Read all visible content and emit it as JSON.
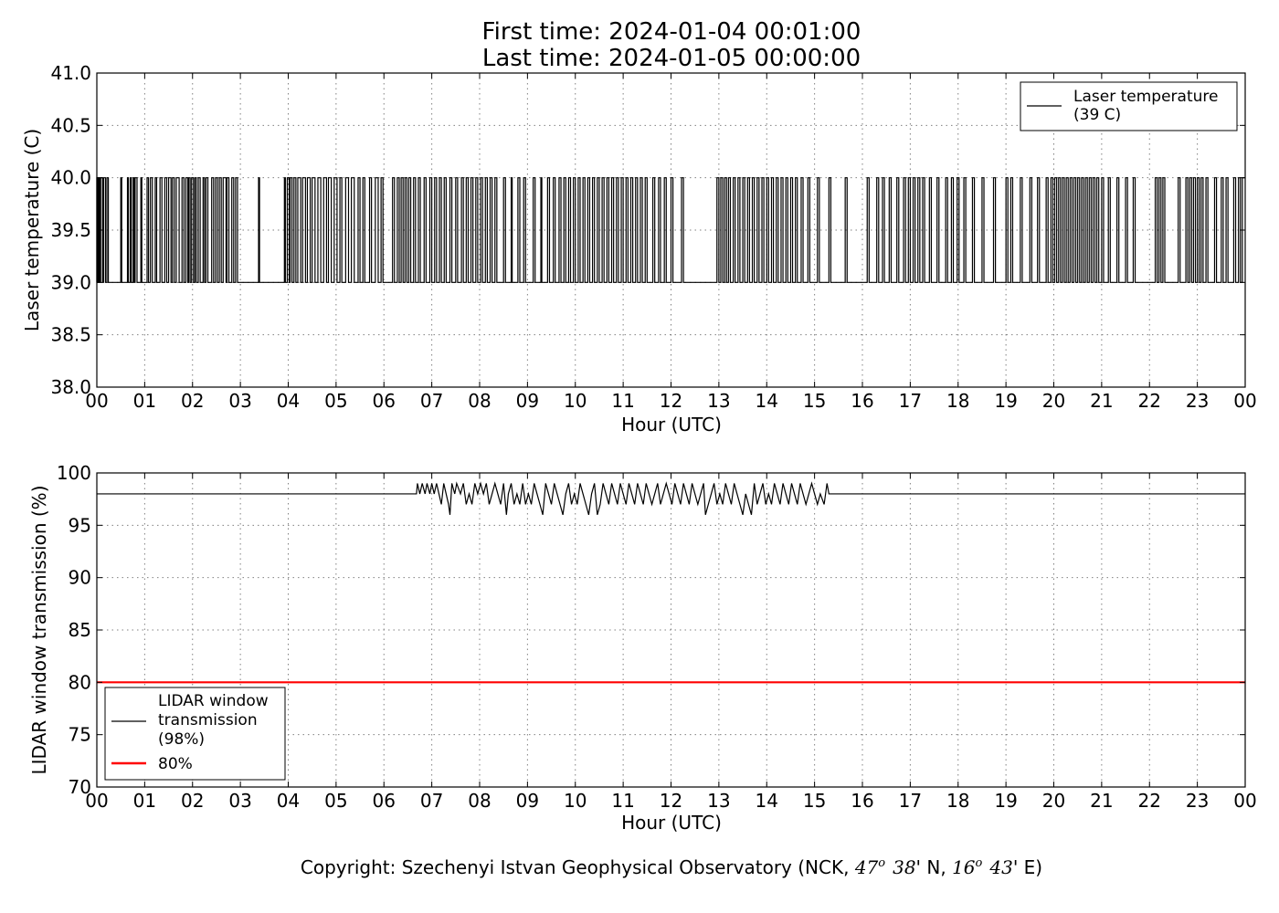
{
  "header": {
    "first_time": "First time: 2024-01-04 00:01:00",
    "last_time": "Last time: 2024-01-05 00:00:00"
  },
  "footer": {
    "copyright_prefix": "Copyright: Szechenyi Istvan Geophysical Observatory (NCK, ",
    "lat_deg": "47",
    "deg_mark": "o",
    "lat_min": "38",
    "lat_suffix": "' N, ",
    "lon_deg": "16",
    "lon_min": "43",
    "lon_suffix": "' E)"
  },
  "colors": {
    "series": "#000000",
    "threshold": "#ff0000",
    "grid": "#808080"
  },
  "chart_data": [
    {
      "type": "line",
      "ylabel": "Laser temperature (C)",
      "xlabel": "Hour (UTC)",
      "xlim": [
        0,
        24
      ],
      "ylim": [
        38.0,
        41.0
      ],
      "x_tick_labels": [
        "00",
        "01",
        "02",
        "03",
        "04",
        "05",
        "06",
        "07",
        "08",
        "09",
        "10",
        "11",
        "12",
        "13",
        "14",
        "15",
        "16",
        "17",
        "18",
        "19",
        "20",
        "21",
        "22",
        "23",
        "00"
      ],
      "y_ticks": [
        38.0,
        38.5,
        39.0,
        39.5,
        40.0,
        40.5,
        41.0
      ],
      "y_tick_labels": [
        "38.0",
        "38.5",
        "39.0",
        "39.5",
        "40.0",
        "40.5",
        "41.0"
      ],
      "grid": true,
      "legend_position": "top-right",
      "series": [
        {
          "name": "Laser temperature\n(39 C)",
          "legend_lines": [
            "Laser temperature",
            "(39 C)"
          ],
          "color": "#000000",
          "low_value": 39.0,
          "high_value": 40.0,
          "x_hours": [
            0.0,
            0.02,
            0.04,
            0.06,
            0.08,
            0.12,
            0.14,
            0.18,
            0.21,
            0.24,
            0.5,
            0.52,
            0.64,
            0.66,
            0.7,
            0.72,
            0.76,
            0.78,
            0.8,
            0.84,
            0.92,
            0.94,
            1.05,
            1.08,
            1.12,
            1.16,
            1.22,
            1.25,
            1.32,
            1.36,
            1.42,
            1.46,
            1.5,
            1.55,
            1.58,
            1.62,
            1.66,
            1.72,
            1.78,
            1.82,
            1.86,
            1.9,
            1.92,
            1.95,
            1.98,
            2.02,
            2.05,
            2.08,
            2.12,
            2.16,
            2.22,
            2.25,
            2.28,
            2.32,
            2.4,
            2.44,
            2.48,
            2.52,
            2.56,
            2.6,
            2.64,
            2.7,
            2.72,
            2.76,
            2.82,
            2.86,
            2.9,
            2.94,
            3.38,
            3.4,
            3.92,
            3.94,
            3.98,
            4.02,
            4.04,
            4.08,
            4.12,
            4.16,
            4.2,
            4.26,
            4.3,
            4.36,
            4.4,
            4.46,
            4.5,
            4.56,
            4.62,
            4.68,
            4.74,
            4.8,
            4.84,
            4.9,
            4.96,
            5.02,
            5.08,
            5.12,
            5.2,
            5.26,
            5.32,
            5.38,
            5.46,
            5.5,
            5.56,
            5.6,
            5.7,
            5.74,
            5.82,
            5.88,
            5.94,
            5.98,
            6.18,
            6.22,
            6.28,
            6.32,
            6.36,
            6.4,
            6.44,
            6.48,
            6.52,
            6.56,
            6.62,
            6.66,
            6.72,
            6.76,
            6.84,
            6.88,
            6.96,
            7.0,
            7.06,
            7.1,
            7.16,
            7.2,
            7.26,
            7.3,
            7.38,
            7.42,
            7.5,
            7.54,
            7.62,
            7.66,
            7.72,
            7.76,
            7.82,
            7.86,
            7.92,
            7.96,
            8.02,
            8.06,
            8.12,
            8.16,
            8.22,
            8.26,
            8.32,
            8.36,
            8.5,
            8.54,
            8.66,
            8.68,
            8.8,
            8.84,
            8.92,
            8.96,
            9.12,
            9.16,
            9.28,
            9.3,
            9.42,
            9.46,
            9.54,
            9.58,
            9.66,
            9.7,
            9.76,
            9.8,
            9.86,
            9.9,
            9.96,
            10.0,
            10.06,
            10.1,
            10.16,
            10.2,
            10.26,
            10.3,
            10.36,
            10.4,
            10.46,
            10.5,
            10.56,
            10.6,
            10.66,
            10.7,
            10.76,
            10.8,
            10.86,
            10.9,
            10.96,
            11.0,
            11.06,
            11.1,
            11.16,
            11.2,
            11.26,
            11.3,
            11.36,
            11.4,
            11.46,
            11.5,
            11.62,
            11.66,
            11.74,
            11.78,
            11.86,
            11.9,
            12.0,
            12.04,
            12.22,
            12.26,
            12.96,
            13.0,
            13.04,
            13.08,
            13.12,
            13.16,
            13.2,
            13.24,
            13.3,
            13.34,
            13.4,
            13.44,
            13.5,
            13.54,
            13.6,
            13.64,
            13.7,
            13.74,
            13.8,
            13.84,
            13.9,
            13.94,
            14.0,
            14.04,
            14.1,
            14.14,
            14.2,
            14.24,
            14.3,
            14.34,
            14.4,
            14.44,
            14.5,
            14.54,
            14.6,
            14.64,
            14.72,
            14.76,
            14.86,
            14.9,
            15.06,
            15.1,
            15.3,
            15.34,
            15.64,
            15.68,
            16.1,
            16.14,
            16.3,
            16.34,
            16.42,
            16.46,
            16.56,
            16.6,
            16.72,
            16.76,
            16.86,
            16.9,
            16.96,
            17.0,
            17.06,
            17.1,
            17.16,
            17.2,
            17.26,
            17.3,
            17.4,
            17.44,
            17.56,
            17.6,
            17.74,
            17.78,
            17.86,
            17.9,
            17.98,
            18.02,
            18.12,
            18.16,
            18.3,
            18.34,
            18.5,
            18.54,
            18.74,
            18.78,
            19.0,
            19.04,
            19.1,
            19.14,
            19.3,
            19.34,
            19.5,
            19.54,
            19.66,
            19.7,
            19.84,
            19.88,
            19.94,
            19.98,
            20.02,
            20.06,
            20.1,
            20.14,
            20.18,
            20.22,
            20.26,
            20.3,
            20.34,
            20.38,
            20.42,
            20.46,
            20.5,
            20.54,
            20.58,
            20.62,
            20.66,
            20.7,
            20.74,
            20.78,
            20.82,
            20.86,
            20.9,
            20.94,
            21.0,
            21.04,
            21.14,
            21.18,
            21.32,
            21.36,
            21.5,
            21.54,
            21.66,
            21.7,
            22.12,
            22.16,
            22.2,
            22.24,
            22.28,
            22.32,
            22.6,
            22.64,
            22.76,
            22.8,
            22.84,
            22.88,
            22.92,
            22.96,
            23.0,
            23.04,
            23.08,
            23.12,
            23.18,
            23.22,
            23.36,
            23.4,
            23.5,
            23.54,
            23.6,
            23.64,
            23.76,
            23.8,
            23.86,
            23.9,
            23.94,
            24.0
          ]
        }
      ]
    },
    {
      "type": "line",
      "ylabel": "LIDAR window transmission (%)",
      "xlabel": "Hour (UTC)",
      "xlim": [
        0,
        24
      ],
      "ylim": [
        70,
        100
      ],
      "x_tick_labels": [
        "00",
        "01",
        "02",
        "03",
        "04",
        "05",
        "06",
        "07",
        "08",
        "09",
        "10",
        "11",
        "12",
        "13",
        "14",
        "15",
        "16",
        "17",
        "18",
        "19",
        "20",
        "21",
        "22",
        "23",
        "00"
      ],
      "y_ticks": [
        70,
        75,
        80,
        85,
        90,
        95,
        100
      ],
      "y_tick_labels": [
        "70",
        "75",
        "80",
        "85",
        "90",
        "95",
        "100"
      ],
      "grid": true,
      "legend_position": "bottom-left",
      "series": [
        {
          "name": "LIDAR window\ntransmission\n(98%)",
          "legend_lines": [
            "LIDAR window",
            "transmission",
            "(98%)"
          ],
          "color": "#000000",
          "baseline": 98,
          "x": [
            0.0,
            6.68,
            6.7,
            6.75,
            6.8,
            6.86,
            6.9,
            6.96,
            7.0,
            7.05,
            7.1,
            7.15,
            7.2,
            7.25,
            7.3,
            7.35,
            7.38,
            7.42,
            7.48,
            7.52,
            7.6,
            7.66,
            7.72,
            7.78,
            7.84,
            7.9,
            7.96,
            8.02,
            8.08,
            8.14,
            8.2,
            8.26,
            8.32,
            8.38,
            8.44,
            8.5,
            8.56,
            8.6,
            8.66,
            8.72,
            8.78,
            8.84,
            8.9,
            8.96,
            9.02,
            9.08,
            9.14,
            9.2,
            9.26,
            9.32,
            9.38,
            9.44,
            9.5,
            9.56,
            9.62,
            9.68,
            9.74,
            9.8,
            9.86,
            9.92,
            9.98,
            10.04,
            10.1,
            10.16,
            10.22,
            10.28,
            10.34,
            10.4,
            10.46,
            10.52,
            10.58,
            10.64,
            10.7,
            10.76,
            10.82,
            10.88,
            10.94,
            11.0,
            11.06,
            11.12,
            11.18,
            11.24,
            11.3,
            11.36,
            11.42,
            11.48,
            11.54,
            11.6,
            11.66,
            11.72,
            11.78,
            11.84,
            11.9,
            11.96,
            12.02,
            12.08,
            12.14,
            12.2,
            12.26,
            12.32,
            12.38,
            12.44,
            12.5,
            12.56,
            12.62,
            12.68,
            12.72,
            12.78,
            12.84,
            12.9,
            12.96,
            13.02,
            13.08,
            13.14,
            13.2,
            13.26,
            13.32,
            13.38,
            13.44,
            13.5,
            13.56,
            13.62,
            13.68,
            13.74,
            13.8,
            13.86,
            13.92,
            13.98,
            14.04,
            14.1,
            14.16,
            14.22,
            14.28,
            14.34,
            14.4,
            14.46,
            14.52,
            14.58,
            14.64,
            14.7,
            14.76,
            14.82,
            14.88,
            14.94,
            15.0,
            15.06,
            15.12,
            15.2,
            15.26,
            15.3,
            24.0
          ],
          "y": [
            98,
            98,
            99,
            98,
            99,
            98,
            99,
            98,
            99,
            98,
            99,
            98,
            97,
            99,
            98,
            97,
            96,
            99,
            98,
            99,
            98,
            99,
            97,
            98,
            97,
            99,
            98,
            99,
            98,
            99,
            97,
            98,
            99,
            98,
            97,
            99,
            96,
            98,
            99,
            97,
            98,
            97,
            99,
            97,
            98,
            97,
            99,
            98,
            97,
            96,
            99,
            98,
            97,
            99,
            98,
            97,
            96,
            98,
            99,
            97,
            98,
            97,
            99,
            98,
            97,
            96,
            98,
            99,
            96,
            97,
            99,
            98,
            97,
            99,
            98,
            97,
            99,
            98,
            97,
            99,
            98,
            97,
            99,
            98,
            97,
            99,
            98,
            97,
            98,
            99,
            97,
            98,
            99,
            98,
            97,
            99,
            98,
            97,
            99,
            98,
            97,
            99,
            98,
            97,
            98,
            99,
            96,
            97,
            98,
            99,
            97,
            98,
            97,
            99,
            98,
            97,
            99,
            98,
            97,
            96,
            98,
            97,
            96,
            99,
            97,
            98,
            99,
            97,
            98,
            97,
            99,
            98,
            97,
            99,
            98,
            97,
            99,
            98,
            97,
            99,
            98,
            97,
            98,
            99,
            98,
            97,
            98,
            97,
            99,
            98,
            98
          ]
        },
        {
          "name": "80%",
          "legend_lines": [
            "80%"
          ],
          "color": "#ff0000",
          "constant": 80
        }
      ]
    }
  ]
}
